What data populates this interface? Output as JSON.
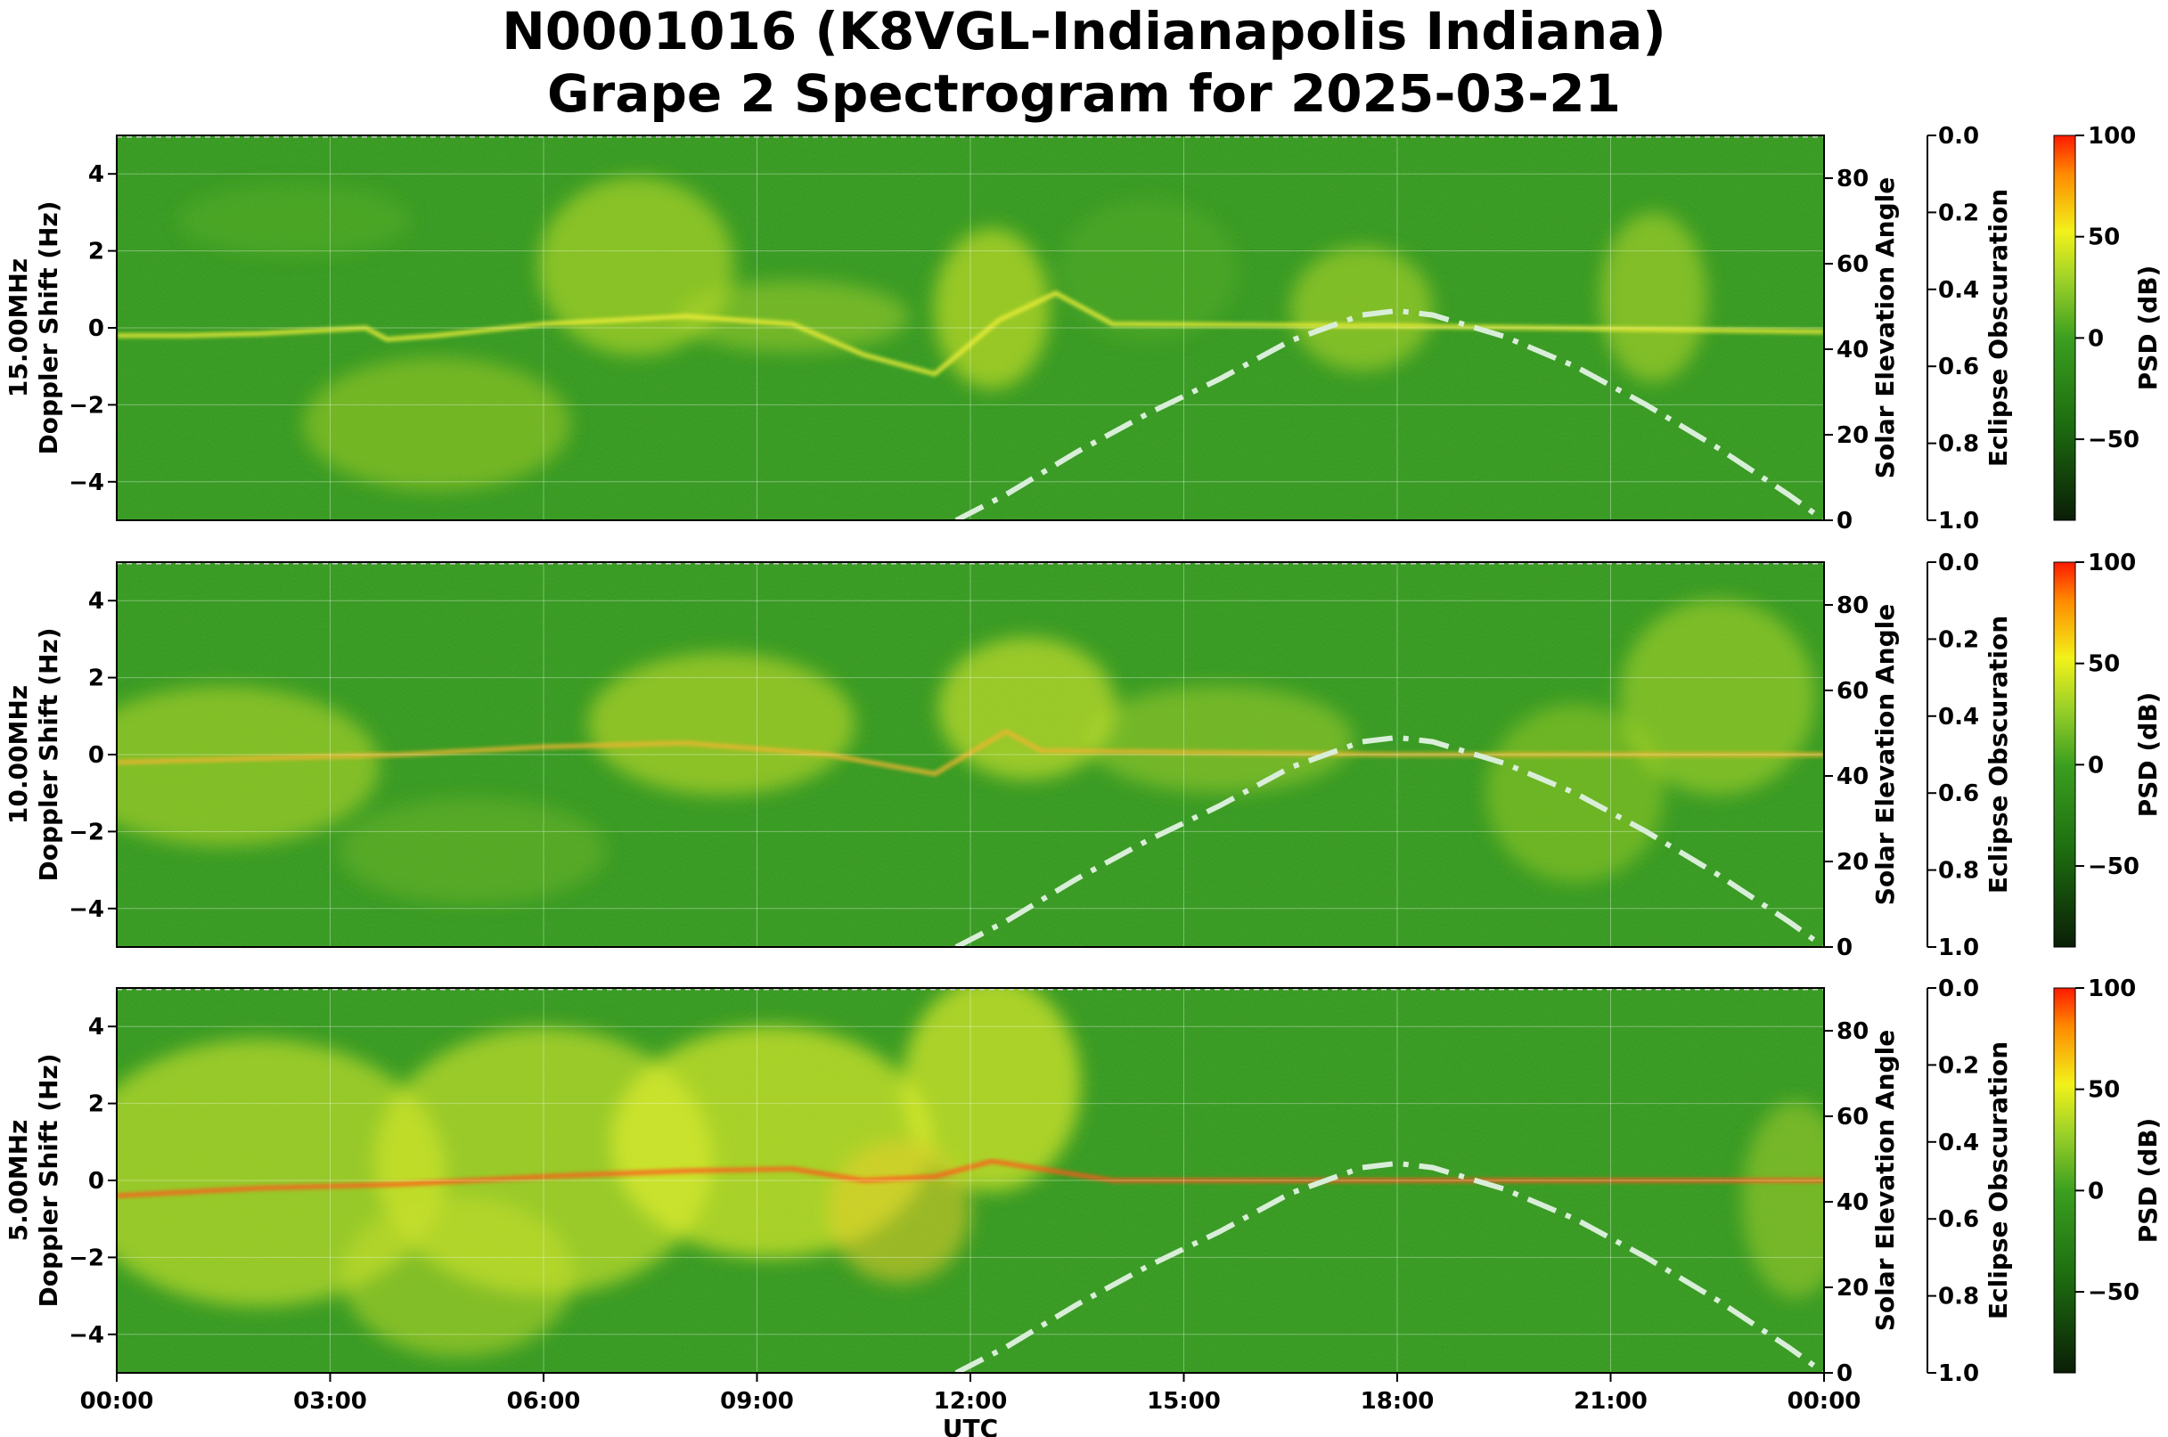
{
  "title_line1": "N0001016 (K8VGL-Indianapolis Indiana)",
  "title_line2": "Grape 2 Spectrogram for 2025-03-21",
  "colors": {
    "background_green": "#2e9a1a",
    "yellow": "#eef02a",
    "red": "#ff2200",
    "solar_curve": "#d9eed9",
    "grid": "#ffffff"
  },
  "chart_data": [
    {
      "type": "heatmap",
      "panel_label": "15.00MHz",
      "ylabel": "Doppler Shift (Hz)",
      "ylim": [
        -5,
        5
      ],
      "yticks": [
        "4",
        "2",
        "0",
        "−2",
        "−4"
      ],
      "right_ylabel": "Solar Elevation Angle",
      "right_ylim": [
        0,
        90
      ],
      "right_yticks": [
        "80",
        "60",
        "40",
        "20",
        "0"
      ],
      "eclipse_label": "Eclipse Obscuration",
      "eclipse_ylim": [
        0,
        1
      ],
      "eclipse_yticks": [
        "0.0",
        "0.2",
        "0.4",
        "0.6",
        "0.8",
        "1.0"
      ],
      "colorbar_label": "PSD (dB)",
      "colorbar_ticks": [
        "100",
        "50",
        "0",
        "−50"
      ],
      "colorbar_range": [
        -90,
        100
      ]
    },
    {
      "type": "heatmap",
      "panel_label": "10.00MHz",
      "ylabel": "Doppler Shift (Hz)",
      "ylim": [
        -5,
        5
      ],
      "yticks": [
        "4",
        "2",
        "0",
        "−2",
        "−4"
      ],
      "right_ylabel": "Solar Elevation Angle",
      "right_ylim": [
        0,
        90
      ],
      "right_yticks": [
        "80",
        "60",
        "40",
        "20",
        "0"
      ],
      "eclipse_label": "Eclipse Obscuration",
      "eclipse_ylim": [
        0,
        1
      ],
      "eclipse_yticks": [
        "0.0",
        "0.2",
        "0.4",
        "0.6",
        "0.8",
        "1.0"
      ],
      "colorbar_label": "PSD (dB)",
      "colorbar_ticks": [
        "100",
        "50",
        "0",
        "−50"
      ],
      "colorbar_range": [
        -90,
        100
      ]
    },
    {
      "type": "heatmap",
      "panel_label": "5.00MHz",
      "ylabel": "Doppler Shift (Hz)",
      "ylim": [
        -5,
        5
      ],
      "yticks": [
        "4",
        "2",
        "0",
        "−2",
        "−4"
      ],
      "right_ylabel": "Solar Elevation Angle",
      "right_ylim": [
        0,
        90
      ],
      "right_yticks": [
        "80",
        "60",
        "40",
        "20",
        "0"
      ],
      "eclipse_label": "Eclipse Obscuration",
      "eclipse_ylim": [
        0,
        1
      ],
      "eclipse_yticks": [
        "0.0",
        "0.2",
        "0.4",
        "0.6",
        "0.8",
        "1.0"
      ],
      "colorbar_label": "PSD (dB)",
      "colorbar_ticks": [
        "100",
        "50",
        "0",
        "−50"
      ],
      "colorbar_range": [
        -90,
        100
      ]
    }
  ],
  "x_axis": {
    "label": "UTC",
    "xlim_hours": [
      0,
      24
    ],
    "ticks": [
      "00:00",
      "03:00",
      "06:00",
      "09:00",
      "12:00",
      "15:00",
      "18:00",
      "21:00",
      "00:00"
    ]
  },
  "solar_elevation_curve": {
    "hours": [
      11.8,
      12.5,
      13.5,
      14.5,
      15.5,
      16.5,
      17.5,
      18.0,
      18.5,
      19.5,
      20.5,
      21.5,
      22.5,
      23.5,
      24.0
    ],
    "degrees": [
      0,
      6,
      16,
      25,
      33,
      42,
      48,
      49,
      48,
      43,
      36,
      27,
      17,
      6,
      0
    ]
  }
}
